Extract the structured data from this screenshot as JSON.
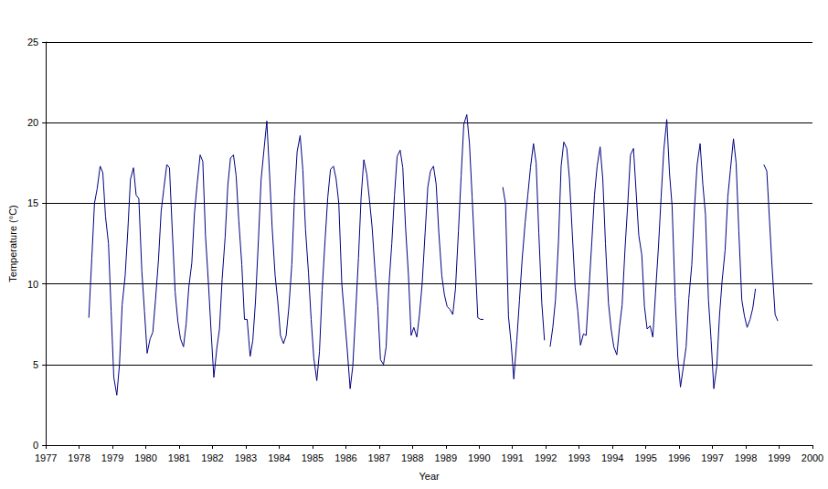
{
  "chart_data": {
    "type": "line",
    "x_label": "Year",
    "y_label": "Temperature (°C)",
    "color": "#000080",
    "marker": "none",
    "grid": true,
    "xlim": [
      1977,
      2000
    ],
    "xticks": [
      1977,
      1978,
      1979,
      1980,
      1981,
      1982,
      1983,
      1984,
      1985,
      1986,
      1987,
      1988,
      1989,
      1990,
      1991,
      1992,
      1993,
      1994,
      1995,
      1996,
      1997,
      1998,
      1999,
      2000
    ],
    "ylim": [
      0,
      25
    ],
    "yticks": [
      0,
      5,
      10,
      15,
      20,
      25
    ],
    "x": [
      1978.29,
      1978.38,
      1978.46,
      1978.54,
      1978.63,
      1978.71,
      1978.79,
      1978.88,
      1978.96,
      1979.04,
      1979.13,
      1979.21,
      1979.29,
      1979.38,
      1979.46,
      1979.54,
      1979.63,
      1979.71,
      1979.79,
      1979.88,
      1979.96,
      1980.04,
      1980.13,
      1980.21,
      1980.29,
      1980.38,
      1980.46,
      1980.54,
      1980.63,
      1980.71,
      1980.79,
      1980.88,
      1980.96,
      1981.04,
      1981.13,
      1981.21,
      1981.29,
      1981.38,
      1981.46,
      1981.54,
      1981.63,
      1981.71,
      1981.79,
      1981.88,
      1981.96,
      1982.04,
      1982.13,
      1982.21,
      1982.29,
      1982.38,
      1982.46,
      1982.54,
      1982.63,
      1982.71,
      1982.79,
      1982.88,
      1982.96,
      1983.04,
      1983.13,
      1983.21,
      1983.29,
      1983.38,
      1983.46,
      1983.54,
      1983.63,
      1983.71,
      1983.79,
      1983.88,
      1983.96,
      1984.04,
      1984.13,
      1984.21,
      1984.29,
      1984.38,
      1984.46,
      1984.54,
      1984.63,
      1984.71,
      1984.79,
      1984.88,
      1984.96,
      1985.04,
      1985.13,
      1985.21,
      1985.29,
      1985.38,
      1985.46,
      1985.54,
      1985.63,
      1985.71,
      1985.79,
      1985.88,
      1985.96,
      1986.04,
      1986.13,
      1986.21,
      1986.29,
      1986.38,
      1986.46,
      1986.54,
      1986.63,
      1986.71,
      1986.79,
      1986.88,
      1986.96,
      1987.04,
      1987.13,
      1987.21,
      1987.29,
      1987.38,
      1987.46,
      1987.54,
      1987.63,
      1987.71,
      1987.79,
      1987.88,
      1987.96,
      1988.04,
      1988.13,
      1988.21,
      1988.29,
      1988.38,
      1988.46,
      1988.54,
      1988.63,
      1988.71,
      1988.79,
      1988.88,
      1988.96,
      1989.04,
      1989.13,
      1989.21,
      1989.29,
      1989.38,
      1989.46,
      1989.54,
      1989.63,
      1989.71,
      1989.79,
      1989.88,
      1989.96,
      1990.04,
      1990.13,
      1990.21,
      1990.29,
      1990.38,
      1990.46,
      1990.54,
      1990.63,
      1990.71,
      1990.79,
      1990.88,
      1990.96,
      1991.04,
      1991.13,
      1991.21,
      1991.29,
      1991.38,
      1991.46,
      1991.54,
      1991.63,
      1991.71,
      1991.79,
      1991.88,
      1991.96,
      1992.04,
      1992.13,
      1992.21,
      1992.29,
      1992.38,
      1992.46,
      1992.54,
      1992.63,
      1992.71,
      1992.79,
      1992.88,
      1992.96,
      1993.04,
      1993.13,
      1993.21,
      1993.29,
      1993.38,
      1993.46,
      1993.54,
      1993.63,
      1993.71,
      1993.79,
      1993.88,
      1993.96,
      1994.04,
      1994.13,
      1994.21,
      1994.29,
      1994.38,
      1994.46,
      1994.54,
      1994.63,
      1994.71,
      1994.79,
      1994.88,
      1994.96,
      1995.04,
      1995.13,
      1995.21,
      1995.29,
      1995.38,
      1995.46,
      1995.54,
      1995.63,
      1995.71,
      1995.79,
      1995.88,
      1995.96,
      1996.04,
      1996.13,
      1996.21,
      1996.29,
      1996.38,
      1996.46,
      1996.54,
      1996.63,
      1996.71,
      1996.79,
      1996.88,
      1996.96,
      1997.04,
      1997.13,
      1997.21,
      1997.29,
      1997.38,
      1997.46,
      1997.54,
      1997.63,
      1997.71,
      1997.79,
      1997.88,
      1997.96,
      1998.04,
      1998.13,
      1998.21,
      1998.29,
      1998.38,
      1998.46,
      1998.54,
      1998.63,
      1998.71,
      1998.79,
      1998.88,
      1998.96
    ],
    "values": [
      7.9,
      11.6,
      15.0,
      15.9,
      17.3,
      16.9,
      14.2,
      12.5,
      8.3,
      4.2,
      3.1,
      5.0,
      8.7,
      10.5,
      13.3,
      16.5,
      17.2,
      15.5,
      15.3,
      10.8,
      8.3,
      5.7,
      6.6,
      7.0,
      9.0,
      11.5,
      14.5,
      15.9,
      17.4,
      17.2,
      13.5,
      9.5,
      7.7,
      6.6,
      6.1,
      7.5,
      9.8,
      11.3,
      14.4,
      16.2,
      18.0,
      17.6,
      13.0,
      10.0,
      7.0,
      4.2,
      6.0,
      7.2,
      10.3,
      12.9,
      16.1,
      17.8,
      18.0,
      16.7,
      13.9,
      11.2,
      7.8,
      7.8,
      5.5,
      6.5,
      8.9,
      12.8,
      16.5,
      18.2,
      20.1,
      16.9,
      13.5,
      10.5,
      8.9,
      6.8,
      6.3,
      6.8,
      8.5,
      11.2,
      15.4,
      18.2,
      19.2,
      17.1,
      13.4,
      10.7,
      7.8,
      5.4,
      4.0,
      5.8,
      9.6,
      12.8,
      15.4,
      17.1,
      17.3,
      16.5,
      15.0,
      10.0,
      8.0,
      6.0,
      3.5,
      4.9,
      8.0,
      11.6,
      15.4,
      17.7,
      16.8,
      15.2,
      13.5,
      10.7,
      8.6,
      5.3,
      5.0,
      6.1,
      9.8,
      12.5,
      15.5,
      17.9,
      18.3,
      17.2,
      13.6,
      10.5,
      6.8,
      7.3,
      6.7,
      8.1,
      10.0,
      13.2,
      16.0,
      17.0,
      17.3,
      16.2,
      13.2,
      10.5,
      9.3,
      8.6,
      8.4,
      8.1,
      9.7,
      13.3,
      16.7,
      19.9,
      20.5,
      18.7,
      15.4,
      11.5,
      7.9,
      7.8,
      7.8,
      null,
      null,
      null,
      null,
      null,
      null,
      16.0,
      15.0,
      8.0,
      6.3,
      4.1,
      6.5,
      9.0,
      11.5,
      13.8,
      15.5,
      17.2,
      18.7,
      17.5,
      13.2,
      8.8,
      6.5,
      null,
      6.1,
      7.3,
      9.0,
      12.6,
      17.3,
      18.8,
      18.4,
      16.5,
      13.3,
      9.8,
      8.3,
      6.2,
      6.9,
      6.8,
      9.5,
      12.6,
      15.5,
      17.3,
      18.5,
      16.5,
      12.5,
      8.8,
      7.2,
      6.1,
      5.6,
      7.3,
      8.7,
      12.3,
      15.0,
      18.0,
      18.4,
      15.7,
      13.0,
      11.8,
      8.6,
      7.2,
      7.4,
      6.7,
      9.4,
      12.3,
      15.4,
      18.3,
      20.2,
      16.9,
      14.8,
      9.2,
      5.5,
      3.6,
      4.9,
      6.1,
      9.1,
      11.2,
      14.7,
      17.4,
      18.7,
      16.2,
      14.3,
      9.0,
      6.5,
      3.5,
      4.9,
      8.0,
      10.2,
      12.1,
      15.4,
      17.1,
      19.0,
      17.5,
      13.3,
      9.0,
      8.0,
      7.3,
      7.8,
      8.5,
      9.7,
      null,
      null,
      17.4,
      17.0,
      14.0,
      11.0,
      8.1,
      7.7
    ]
  }
}
